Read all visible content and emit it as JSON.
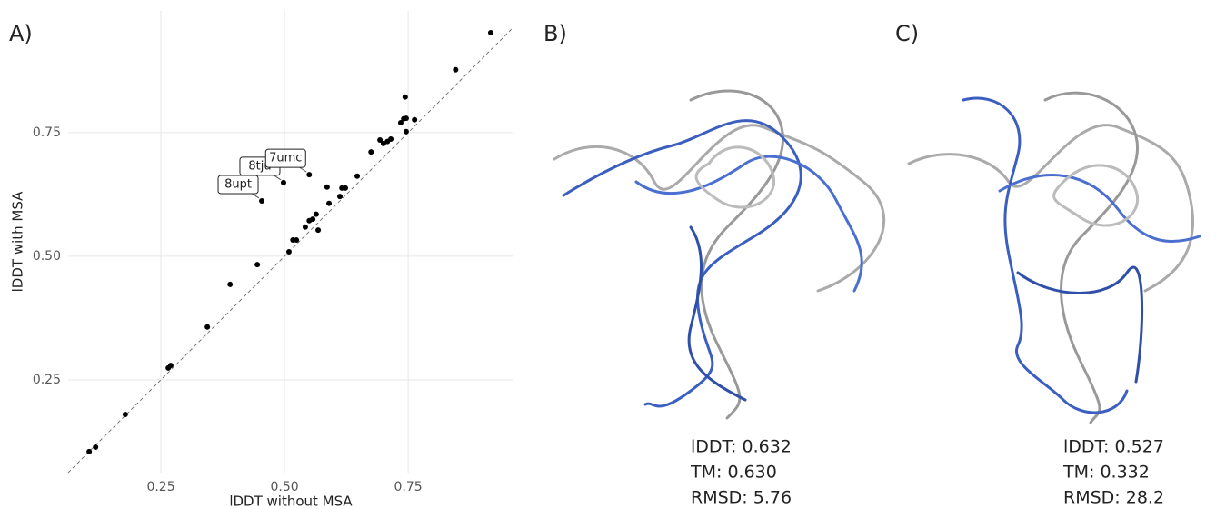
{
  "chart_data": {
    "type": "scatter",
    "panel_label": "A)",
    "xlabel": "lDDT without MSA",
    "ylabel": "lDDT with MSA",
    "xlim": [
      0.0625,
      0.963
    ],
    "ylim": [
      0.0625,
      0.996
    ],
    "xticks": [
      0.25,
      {
        "value": 0.5,
        "label": "0.50"
      },
      0.75
    ],
    "yticks": [
      0.25,
      {
        "value": 0.5,
        "label": "0.50"
      },
      0.75
    ],
    "grid": true,
    "color": "#000000",
    "x": [
      0.105,
      0.118,
      0.178,
      0.265,
      0.27,
      0.344,
      0.39,
      0.445,
      0.454,
      0.498,
      0.509,
      0.517,
      0.524,
      0.542,
      0.55,
      0.557,
      0.564,
      0.568,
      0.55,
      0.586,
      0.59,
      0.612,
      0.616,
      0.623,
      0.647,
      0.675,
      0.693,
      0.7,
      0.708,
      0.715,
      0.735,
      0.741,
      0.746,
      0.746,
      0.744,
      0.763,
      0.846,
      0.917
    ],
    "values": [
      0.105,
      0.114,
      0.18,
      0.274,
      0.279,
      0.357,
      0.443,
      0.483,
      0.612,
      0.649,
      0.509,
      0.533,
      0.533,
      0.559,
      0.572,
      0.575,
      0.585,
      0.553,
      0.665,
      0.64,
      0.607,
      0.621,
      0.638,
      0.638,
      0.662,
      0.711,
      0.735,
      0.728,
      0.732,
      0.737,
      0.77,
      0.778,
      0.752,
      0.779,
      0.822,
      0.776,
      0.877,
      0.952
    ],
    "point_labels": [
      null,
      null,
      null,
      null,
      null,
      null,
      null,
      null,
      "8upt",
      "8tju",
      null,
      null,
      null,
      null,
      null,
      null,
      null,
      null,
      "7umc",
      null,
      null,
      null,
      null,
      null,
      null,
      null,
      null,
      null,
      null,
      null,
      null,
      null,
      null,
      null,
      null,
      null,
      null,
      null
    ]
  },
  "panels": [
    {
      "label": "B)",
      "lines": [
        "lDDT: 0.632",
        "TM: 0.630",
        "RMSD: 5.76"
      ]
    },
    {
      "label": "C)",
      "lines": [
        "lDDT: 0.527",
        "TM: 0.332",
        "RMSD: 28.2"
      ]
    }
  ]
}
